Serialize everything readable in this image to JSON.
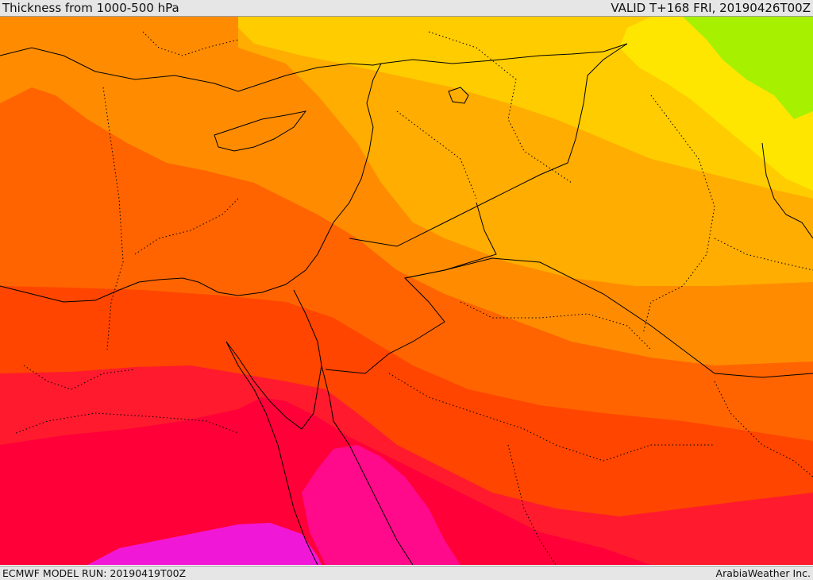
{
  "header": {
    "title": "Thickness from 1000-500 hPa",
    "valid_time": "VALID T+168 FRI, 20190426T00Z"
  },
  "footer": {
    "model_run": "ECMWF MODEL RUN: 20190419T00Z",
    "credit": "ArabiaWeather Inc."
  },
  "map": {
    "field": "1000-500 hPa thickness",
    "bands": [
      {
        "name": "lime",
        "color": "#a6f000"
      },
      {
        "name": "yellow",
        "color": "#ffe600"
      },
      {
        "name": "golden-yellow",
        "color": "#ffcc00"
      },
      {
        "name": "amber",
        "color": "#ffad00"
      },
      {
        "name": "orange",
        "color": "#ff8c00"
      },
      {
        "name": "dark-orange",
        "color": "#ff6400"
      },
      {
        "name": "red-orange",
        "color": "#ff4500"
      },
      {
        "name": "red",
        "color": "#ff1a2e"
      },
      {
        "name": "crimson",
        "color": "#ff0038"
      },
      {
        "name": "deep-pink",
        "color": "#ff0a8a"
      },
      {
        "name": "magenta",
        "color": "#f018d6"
      }
    ],
    "border_color": "#000000"
  }
}
